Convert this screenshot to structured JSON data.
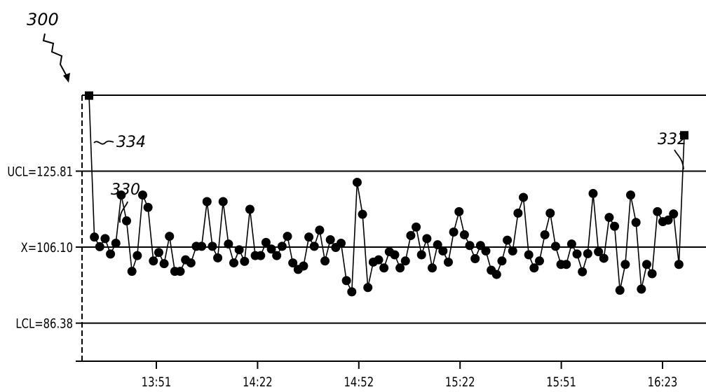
{
  "figure_label": "300",
  "chart_data": {
    "type": "line",
    "title": "",
    "xlabel": "",
    "ylabel": "",
    "x_ticks": [
      "13:51",
      "14:22",
      "14:52",
      "15:22",
      "15:51",
      "16:23"
    ],
    "ylim": [
      76.5,
      145.5
    ],
    "grid": false,
    "control_lines": [
      {
        "name": "UCL",
        "label": "UCL=125.81",
        "value": 125.81
      },
      {
        "name": "center",
        "label": "X=106.10",
        "value": 106.1
      },
      {
        "name": "LCL",
        "label": "LCL=86.38",
        "value": 86.38
      }
    ],
    "series": [
      {
        "values": [
          145.4,
          108.7,
          106.2,
          108.3,
          104.3,
          107.1,
          119.6,
          112.9,
          99.8,
          103.9,
          119.6,
          116.4,
          102.5,
          104.7,
          101.8,
          108.9,
          99.8,
          99.8,
          102.8,
          102.0,
          106.3,
          106.3,
          117.9,
          106.3,
          103.3,
          117.9,
          106.9,
          102.0,
          105.4,
          102.4,
          115.9,
          103.9,
          103.9,
          107.3,
          105.6,
          103.9,
          106.3,
          108.9,
          102.0,
          100.3,
          101.2,
          108.7,
          106.3,
          110.5,
          102.5,
          108.0,
          106.0,
          107.1,
          97.4,
          94.5,
          122.9,
          114.6,
          95.6,
          102.2,
          102.8,
          100.7,
          104.9,
          104.1,
          100.7,
          102.5,
          109.1,
          111.3,
          104.1,
          108.3,
          100.7,
          106.7,
          105.1,
          102.2,
          110.0,
          115.3,
          109.3,
          106.5,
          103.1,
          106.5,
          105.1,
          100.1,
          99.0,
          102.5,
          107.9,
          105.1,
          114.9,
          119.0,
          104.1,
          100.7,
          102.5,
          109.3,
          114.9,
          106.3,
          101.6,
          101.6,
          106.9,
          104.3,
          99.7,
          104.4,
          120.0,
          104.9,
          103.2,
          113.8,
          111.5,
          94.9,
          101.6,
          119.6,
          112.5,
          95.2,
          101.6,
          99.2,
          115.3,
          112.7,
          113.1,
          114.7,
          101.6,
          135.1
        ]
      }
    ],
    "annotations": [
      {
        "ref": "330",
        "target": "first plotted point within limits"
      },
      {
        "ref": "332",
        "target": "first point, above UCL"
      },
      {
        "ref": "334",
        "target": "last point, above UCL"
      }
    ]
  }
}
